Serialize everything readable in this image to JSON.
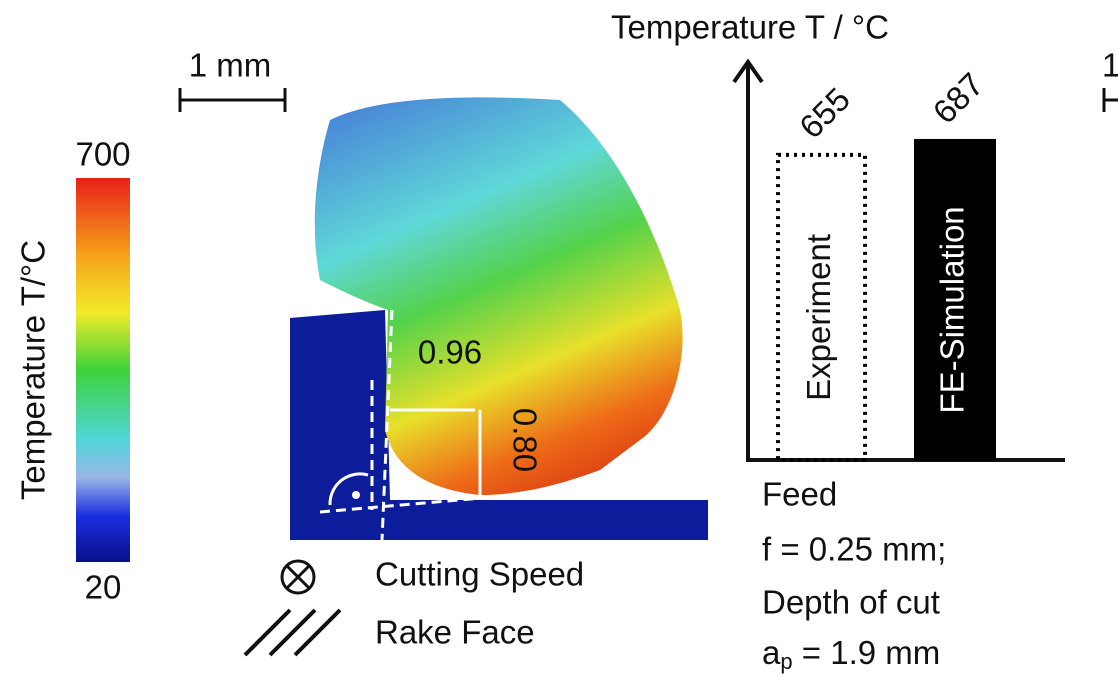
{
  "scale_bar": "1 mm",
  "scale_bar_cut": "1",
  "colorbar": {
    "label": "Temperature T/°C",
    "min": 20,
    "max": 700
  },
  "annotations": {
    "length_a": "0.96",
    "length_b": "0.80"
  },
  "legend": {
    "cutting_speed": "Cutting Speed",
    "rake_face": "Rake Face"
  },
  "conditions": {
    "feed": "Feed",
    "feed_value": "f = 0.25 mm;",
    "depth": "Depth of cut",
    "depth_symbol": "a",
    "depth_sub": "p",
    "depth_value": " = 1.9 mm"
  },
  "chart_data": {
    "type": "bar",
    "title": "Temperature T / °C",
    "categories": [
      "Experiment",
      "FE-Simulation"
    ],
    "values": [
      655,
      687
    ],
    "styles": [
      "dotted",
      "solid"
    ],
    "color": "#000000",
    "ylim": [
      0,
      850
    ]
  }
}
